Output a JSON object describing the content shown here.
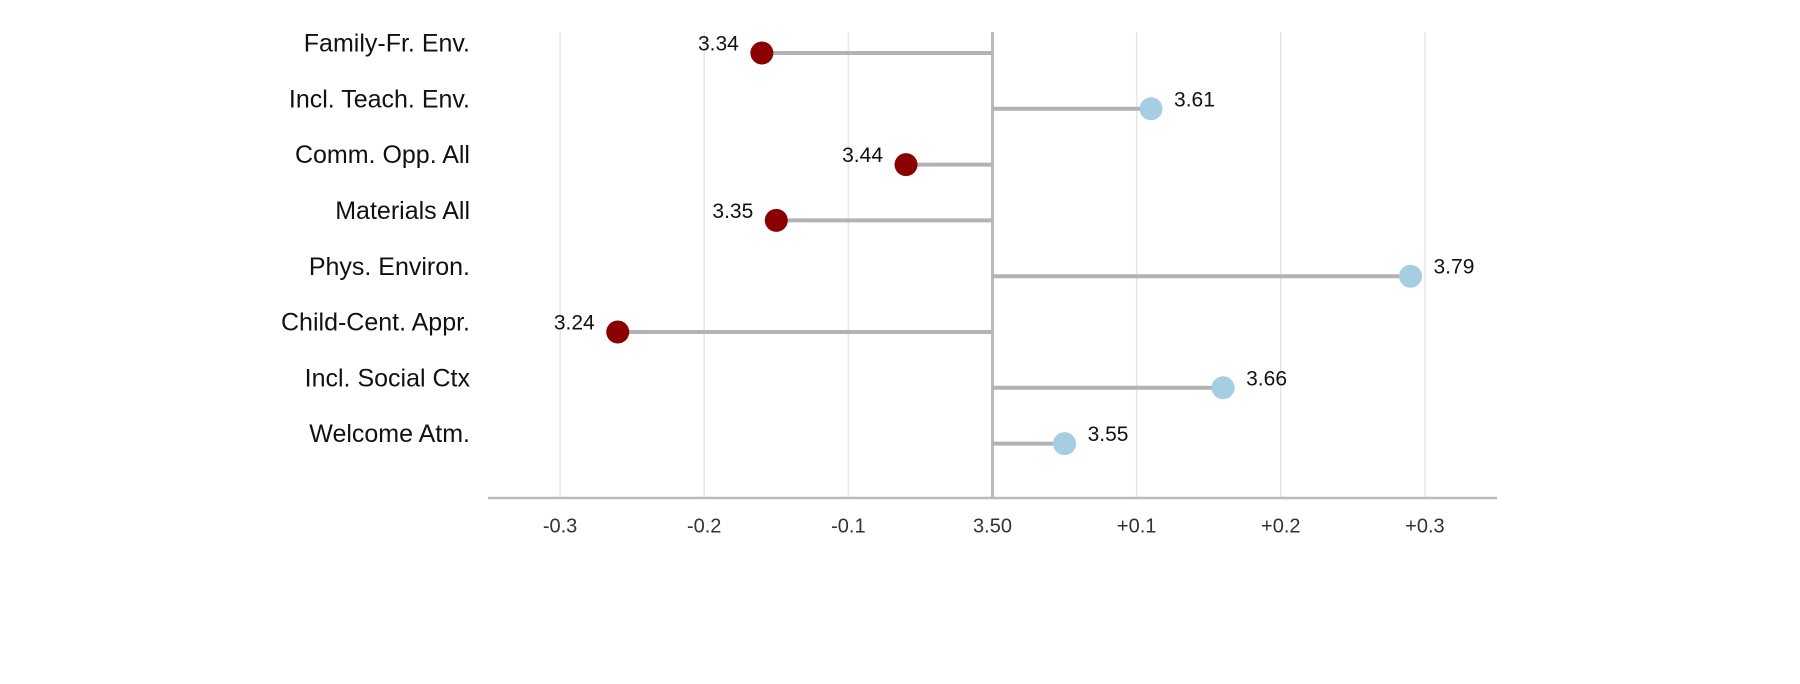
{
  "chart_data": {
    "type": "lollipop",
    "categories": [
      "Family-Fr. Env.",
      "Incl. Teach. Env.",
      "Comm. Opp. All",
      "Materials All",
      "Phys. Environ.",
      "Child-Cent. Appr.",
      "Incl. Social Ctx",
      "Welcome Atm."
    ],
    "values": [
      3.34,
      3.61,
      3.44,
      3.35,
      3.79,
      3.24,
      3.66,
      3.55
    ],
    "colors": [
      "#8b0000",
      "#a6cee3",
      "#8b0000",
      "#8b0000",
      "#a6cee3",
      "#8b0000",
      "#a6cee3",
      "#a6cee3"
    ],
    "baseline": 3.5,
    "xlim": [
      3.15,
      3.85
    ],
    "xticks": [
      {
        "value": 3.2,
        "label": "-0.3"
      },
      {
        "value": 3.3,
        "label": "-0.2"
      },
      {
        "value": 3.4,
        "label": "-0.1"
      },
      {
        "value": 3.5,
        "label": "3.50"
      },
      {
        "value": 3.6,
        "label": "+0.1"
      },
      {
        "value": 3.7,
        "label": "+0.2"
      },
      {
        "value": 3.8,
        "label": "+0.3"
      }
    ],
    "grid": true
  }
}
